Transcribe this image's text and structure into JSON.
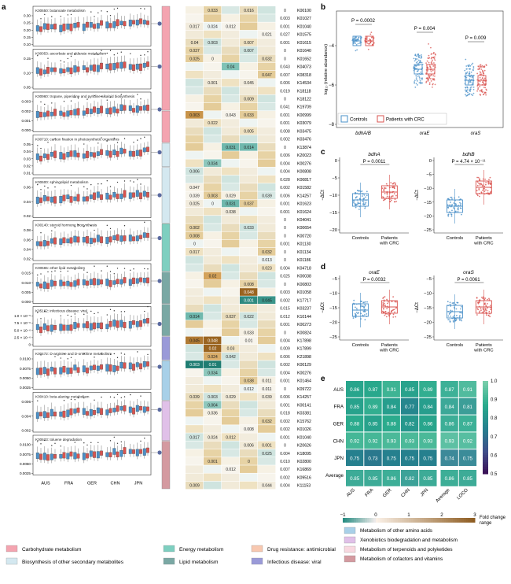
{
  "panels": {
    "a": "a",
    "b": "b",
    "c": "c",
    "d": "d",
    "e": "e"
  },
  "colors": {
    "control": "#4a90c8",
    "crc": "#d9534f",
    "teal": "#2a8a84",
    "brown": "#a8732f"
  },
  "panel_a": {
    "subplots": [
      {
        "title": "K00650: butanoate metabolism",
        "yticks": [
          "0.30",
          "0.25",
          "0.20",
          "0.15",
          "0.10"
        ],
        "color": "#f4a4b0"
      },
      {
        "title": "K00053: ascorbate and aldarate metabolism",
        "yticks": [
          "0.15",
          "0.10",
          "0.05"
        ],
        "color": "#f4a4b0"
      },
      {
        "title": "K00960: tropane, piperidine and pyridine alkaloid biosynthesis",
        "yticks": [
          "0.003",
          "0.002",
          "0.001",
          "0.000"
        ],
        "color": "#d4e8f0"
      },
      {
        "title": "K00710: carbon fixation in photosynthetic organisms",
        "yticks": [
          "0.05",
          "0.04",
          "0.03",
          "0.02",
          "0.01"
        ],
        "color": "#d4e8f0"
      },
      {
        "title": "K00600: sphingolipid metabolism",
        "yticks": [
          "0.06",
          "0.04",
          "0.02"
        ],
        "color": "#7ecfc0"
      },
      {
        "title": "K00140: steroid hormone biosynthesis",
        "yticks": [
          "0.08",
          "0.06",
          "0.04",
          "0.02"
        ],
        "color": "#7aa8a4"
      },
      {
        "title": "K00565: ether lipid metabolism",
        "yticks": [
          "0.015",
          "0.010",
          "0.005",
          "0.000"
        ],
        "color": "#7aa8a4"
      },
      {
        "title": "K05162: infectious disease: viral",
        "yticks": [
          "1.0 × 10⁻⁵",
          "7.5 × 10⁻⁶",
          "5.0 × 10⁻⁶",
          "2.5 × 10⁻⁶",
          "0"
        ],
        "color": "#9a9ad8"
      },
      {
        "title": "K00472: D-arginine and D-ornithine metabolism",
        "yticks": [
          "0.0100",
          "0.0075",
          "0.0050",
          "0.0025"
        ],
        "color": "#a8d0e8"
      },
      {
        "title": "K00410: beta-alanine metabolism",
        "yticks": [
          "0.006",
          "0.004",
          "0.002"
        ],
        "color": "#e0c0e8"
      },
      {
        "title": "K00623: toluene degradation",
        "yticks": [
          "0.0100",
          "0.0075",
          "0.0050",
          "0.0025"
        ],
        "color": "#d49aa0"
      }
    ],
    "xticks": [
      "AUS",
      "FRA",
      "GER",
      "CHN",
      "JPN"
    ],
    "heatmap_rows": [
      {
        "ko": "K00100",
        "cells": [
          "",
          "0.033",
          "",
          "0.016",
          "",
          "0"
        ]
      },
      {
        "ko": "K01027",
        "cells": [
          "",
          "",
          "",
          "",
          "",
          "0.003"
        ]
      },
      {
        "ko": "K01040",
        "cells": [
          "0.017",
          "0.024",
          "0.012",
          "",
          "",
          "0.001"
        ]
      },
      {
        "ko": "K01575",
        "cells": [
          "",
          "",
          "",
          "",
          "0.021",
          "0.027"
        ]
      },
      {
        "ko": "K01615",
        "cells": [
          "0.04",
          "0.003",
          "",
          "0.007",
          "",
          "0.001"
        ]
      },
      {
        "ko": "K01640",
        "cells": [
          "0.037",
          "",
          "",
          "0.007",
          "",
          "0"
        ]
      },
      {
        "ko": "K01652",
        "cells": [
          "0.025",
          "0",
          "",
          "",
          "0.032",
          "0"
        ]
      },
      {
        "ko": "K04073",
        "cells": [
          "",
          "",
          "0.04",
          "",
          "",
          "0.043"
        ]
      },
      {
        "ko": "K08318",
        "cells": [
          "",
          "",
          "",
          "",
          "0.047",
          "0.007"
        ]
      },
      {
        "ko": "K14534",
        "cells": [
          "",
          "0.001",
          "",
          "0.045",
          "",
          "0.006"
        ]
      },
      {
        "ko": "K18118",
        "cells": [
          "",
          "",
          "",
          "",
          "",
          "0.019"
        ]
      },
      {
        "ko": "K18122",
        "cells": [
          "",
          "",
          "",
          "0.009",
          "",
          "0"
        ]
      },
      {
        "ko": "K19709",
        "cells": [
          "",
          "",
          "",
          "",
          "",
          "0.041"
        ]
      },
      {
        "ko": "K00999",
        "cells": [
          "0.003",
          "",
          "0.043",
          "0.033",
          "",
          "0.001"
        ]
      },
      {
        "ko": "K03079",
        "cells": [
          "",
          "0.022",
          "",
          "",
          "",
          "0.001"
        ]
      },
      {
        "ko": "K03475",
        "cells": [
          "",
          "",
          "",
          "0.005",
          "",
          "0.008"
        ]
      },
      {
        "ko": "K03476",
        "cells": [
          "",
          "",
          "",
          "",
          "",
          "0.002"
        ]
      },
      {
        "ko": "K13874",
        "cells": [
          "",
          "",
          "0.031",
          "0.014",
          "",
          "0"
        ]
      },
      {
        "ko": "K20023",
        "cells": [
          "",
          "",
          "",
          "",
          "",
          "0.006"
        ]
      },
      {
        "ko": "K00276",
        "cells": [
          "",
          "0.034",
          "",
          "",
          "",
          "0.004"
        ]
      },
      {
        "ko": "K00808",
        "cells": [
          "0.006",
          "",
          "",
          "",
          "",
          "0.004"
        ]
      },
      {
        "ko": "K00817",
        "cells": [
          "",
          "",
          "",
          "",
          "",
          "0.028"
        ]
      },
      {
        "ko": "K01582",
        "cells": [
          "0.047",
          "",
          "",
          "",
          "",
          "0.002"
        ]
      },
      {
        "ko": "K14257",
        "cells": [
          "0.039",
          "0.003",
          "0.029",
          "",
          "0.039",
          "0.006"
        ]
      },
      {
        "ko": "K01623",
        "cells": [
          "0.025",
          "0",
          "0.031",
          "0.037",
          "",
          "0.001"
        ]
      },
      {
        "ko": "K01624",
        "cells": [
          "",
          "",
          "0.038",
          "",
          "",
          "0.001"
        ]
      },
      {
        "ko": "K04041",
        "cells": [
          "",
          "",
          "",
          "",
          "",
          "0"
        ]
      },
      {
        "ko": "K00654",
        "cells": [
          "0.002",
          "",
          "",
          "0.033",
          "",
          "0"
        ]
      },
      {
        "ko": "K00720",
        "cells": [
          "0.008",
          "",
          "",
          "",
          "",
          "0"
        ]
      },
      {
        "ko": "K01130",
        "cells": [
          "0",
          "",
          "",
          "",
          "",
          "0.001"
        ]
      },
      {
        "ko": "K01134",
        "cells": [
          "0.017",
          "",
          "",
          "",
          "0.032",
          "0"
        ]
      },
      {
        "ko": "K01186",
        "cells": [
          "",
          "",
          "",
          "",
          "0.013",
          "0"
        ]
      },
      {
        "ko": "K04718",
        "cells": [
          "",
          "",
          "",
          "",
          "0.023",
          "0.004"
        ]
      },
      {
        "ko": "K00038",
        "cells": [
          "",
          "0.02",
          "",
          "",
          "",
          "0.025"
        ]
      },
      {
        "ko": "K00803",
        "cells": [
          "",
          "",
          "",
          "0.008",
          "",
          "0"
        ]
      },
      {
        "ko": "K01058",
        "cells": [
          "",
          "",
          "",
          "0.048",
          "",
          "0.003"
        ]
      },
      {
        "ko": "K17717",
        "cells": [
          "",
          "",
          "",
          "0.001",
          "0.045",
          "0.002"
        ]
      },
      {
        "ko": "K03237",
        "cells": [
          "",
          "",
          "",
          "",
          "",
          "0.015"
        ]
      },
      {
        "ko": "K10144",
        "cells": [
          "0.014",
          "",
          "0.037",
          "0.022",
          "",
          "0.012"
        ]
      },
      {
        "ko": "K00273",
        "cells": [
          "",
          "",
          "",
          "",
          "",
          "0.001"
        ]
      },
      {
        "ko": "K00824",
        "cells": [
          "",
          "",
          "",
          "0.033",
          "",
          "0"
        ]
      },
      {
        "ko": "K17898",
        "cells": [
          "0.045",
          "0.048",
          "",
          "0.01",
          "",
          "0.004"
        ]
      },
      {
        "ko": "K17899",
        "cells": [
          "",
          "0.02",
          "0.03",
          "",
          "",
          "0.009"
        ]
      },
      {
        "ko": "K21898",
        "cells": [
          "",
          "0.024",
          "0.042",
          "",
          "",
          "0.006"
        ]
      },
      {
        "ko": "K00129",
        "cells": [
          "0.003",
          "0.01",
          "",
          "",
          "",
          "0.002"
        ]
      },
      {
        "ko": "K00276",
        "cells": [
          "",
          "0.034",
          "",
          "",
          "",
          "0.004"
        ]
      },
      {
        "ko": "K01464",
        "cells": [
          "",
          "",
          "",
          "0.038",
          "0.011",
          "0.001"
        ]
      },
      {
        "ko": "K09722",
        "cells": [
          "",
          "",
          "",
          "0.012",
          "0.011",
          "0"
        ]
      },
      {
        "ko": "K14257",
        "cells": [
          "0.039",
          "0.003",
          "0.029",
          "",
          "0.039",
          "0.006"
        ]
      },
      {
        "ko": "K00141",
        "cells": [
          "",
          "0.004",
          "",
          "",
          "",
          "0.001"
        ]
      },
      {
        "ko": "K03381",
        "cells": [
          "",
          "0.036",
          "",
          "",
          "",
          "0.018"
        ]
      },
      {
        "ko": "K15762",
        "cells": [
          "",
          "",
          "",
          "",
          "0.032",
          "0.002"
        ]
      },
      {
        "ko": "K01026",
        "cells": [
          "",
          "",
          "",
          "0.008",
          "",
          "0.002"
        ]
      },
      {
        "ko": "K01040",
        "cells": [
          "0.017",
          "0.024",
          "0.012",
          "",
          "",
          "0.001"
        ]
      },
      {
        "ko": "K20626",
        "cells": [
          "",
          "",
          "",
          "0.006",
          "0.001",
          "0"
        ]
      },
      {
        "ko": "K18095",
        "cells": [
          "",
          "",
          "",
          "",
          "0.025",
          "0.004"
        ]
      },
      {
        "ko": "K02800",
        "cells": [
          "",
          "0.001",
          "",
          "0",
          "",
          "0.010"
        ]
      },
      {
        "ko": "K16869",
        "cells": [
          "",
          "",
          "0.012",
          "",
          "",
          "0.007"
        ]
      },
      {
        "ko": "K09516",
        "cells": [
          "",
          "",
          "",
          "",
          "",
          "0.002"
        ]
      },
      {
        "ko": "K11153",
        "cells": [
          "0.009",
          "",
          "",
          "",
          "0.044",
          "0.004"
        ]
      }
    ]
  },
  "panel_b": {
    "ylabel": "log₁₀ (relative abundance)",
    "yticks": [
      "−4",
      "−6",
      "−8"
    ],
    "groups": [
      "bdhA/B",
      "oraE",
      "oraS"
    ],
    "pvalues": [
      "P = 0.0002",
      "P = 0.004",
      "P = 0.009"
    ],
    "legend": [
      "Controls",
      "Patients with CRC"
    ]
  },
  "panel_c": [
    {
      "title": "bdhA",
      "pvalue": "P = 0.0011",
      "ylabel": "−ΔCt",
      "yticks": [
        "0",
        "−5",
        "−10",
        "−15",
        "−20"
      ],
      "xlabels": [
        "Controls",
        "Patients with CRC"
      ]
    },
    {
      "title": "bdhB",
      "pvalue": "P = 4.74 × 10⁻¹¹",
      "ylabel": "−ΔCt",
      "yticks": [
        "0",
        "−5",
        "−10",
        "−15",
        "−20",
        "−25"
      ],
      "xlabels": [
        "Controls",
        "Patients with CRC"
      ]
    }
  ],
  "panel_d": [
    {
      "title": "oraE",
      "pvalue": "P = 0.0032",
      "ylabel": "−ΔCt",
      "yticks": [
        "−5",
        "−10",
        "−15",
        "−20",
        "−25"
      ],
      "xlabels": [
        "Controls",
        "Patients with CRC"
      ]
    },
    {
      "title": "oraS",
      "pvalue": "P = 0.0061",
      "ylabel": "−ΔCt",
      "yticks": [
        "−5",
        "−10",
        "−15",
        "−20",
        "−25"
      ],
      "xlabels": [
        "Controls",
        "Patients with CRC"
      ]
    }
  ],
  "chart_data": {
    "type": "heatmap",
    "rows": [
      "AUS",
      "FRA",
      "GER",
      "CHN",
      "JPN",
      "Average"
    ],
    "columns": [
      "AUS",
      "FRA",
      "GER",
      "CHN",
      "JPN",
      "Average",
      "LOCO"
    ],
    "values": [
      [
        0.86,
        0.87,
        0.91,
        0.85,
        0.89,
        0.87,
        0.91
      ],
      [
        0.85,
        0.89,
        0.84,
        0.77,
        0.84,
        0.84,
        0.81
      ],
      [
        0.88,
        0.85,
        0.88,
        0.82,
        0.86,
        0.86,
        0.87
      ],
      [
        0.92,
        0.92,
        0.93,
        0.93,
        0.93,
        0.93,
        0.92
      ],
      [
        0.75,
        0.73,
        0.75,
        0.75,
        0.75,
        0.74,
        0.75
      ],
      [
        0.85,
        0.85,
        0.86,
        0.82,
        0.85,
        0.86,
        0.85
      ]
    ],
    "colorbar": {
      "min": 0.5,
      "max": 1.0,
      "ticks": [
        "1.0",
        "0.9",
        "0.8",
        "0.7",
        "0.6",
        "0.5"
      ]
    }
  },
  "fold_change": {
    "label": "Fold change range",
    "ticks": [
      "−1",
      "0",
      "1",
      "2",
      "3"
    ]
  },
  "legend_right": [
    "Metabolism of other amino acids",
    "Xenobiotics biodegradation and metabolism",
    "Metabolism of terpenoids and polyketides",
    "Metabolism of cofactors and vitamins"
  ],
  "legend_right_colors": [
    "#a8d0e8",
    "#e0c0e8",
    "#f8d8e0",
    "#d49aa0"
  ],
  "legend_bottom": [
    {
      "label": "Carbohydrate metabolism",
      "color": "#f4a4b0"
    },
    {
      "label": "Biosynthesis of other secondary metabolites",
      "color": "#d4e8f0"
    },
    {
      "label": "Energy metabolism",
      "color": "#7ecfc0"
    },
    {
      "label": "Lipid metabolism",
      "color": "#7aa8a4"
    },
    {
      "label": "Drug resistance: antimicrobial",
      "color": "#f8c8b0"
    },
    {
      "label": "Infectious disease: viral",
      "color": "#9a9ad8"
    }
  ]
}
